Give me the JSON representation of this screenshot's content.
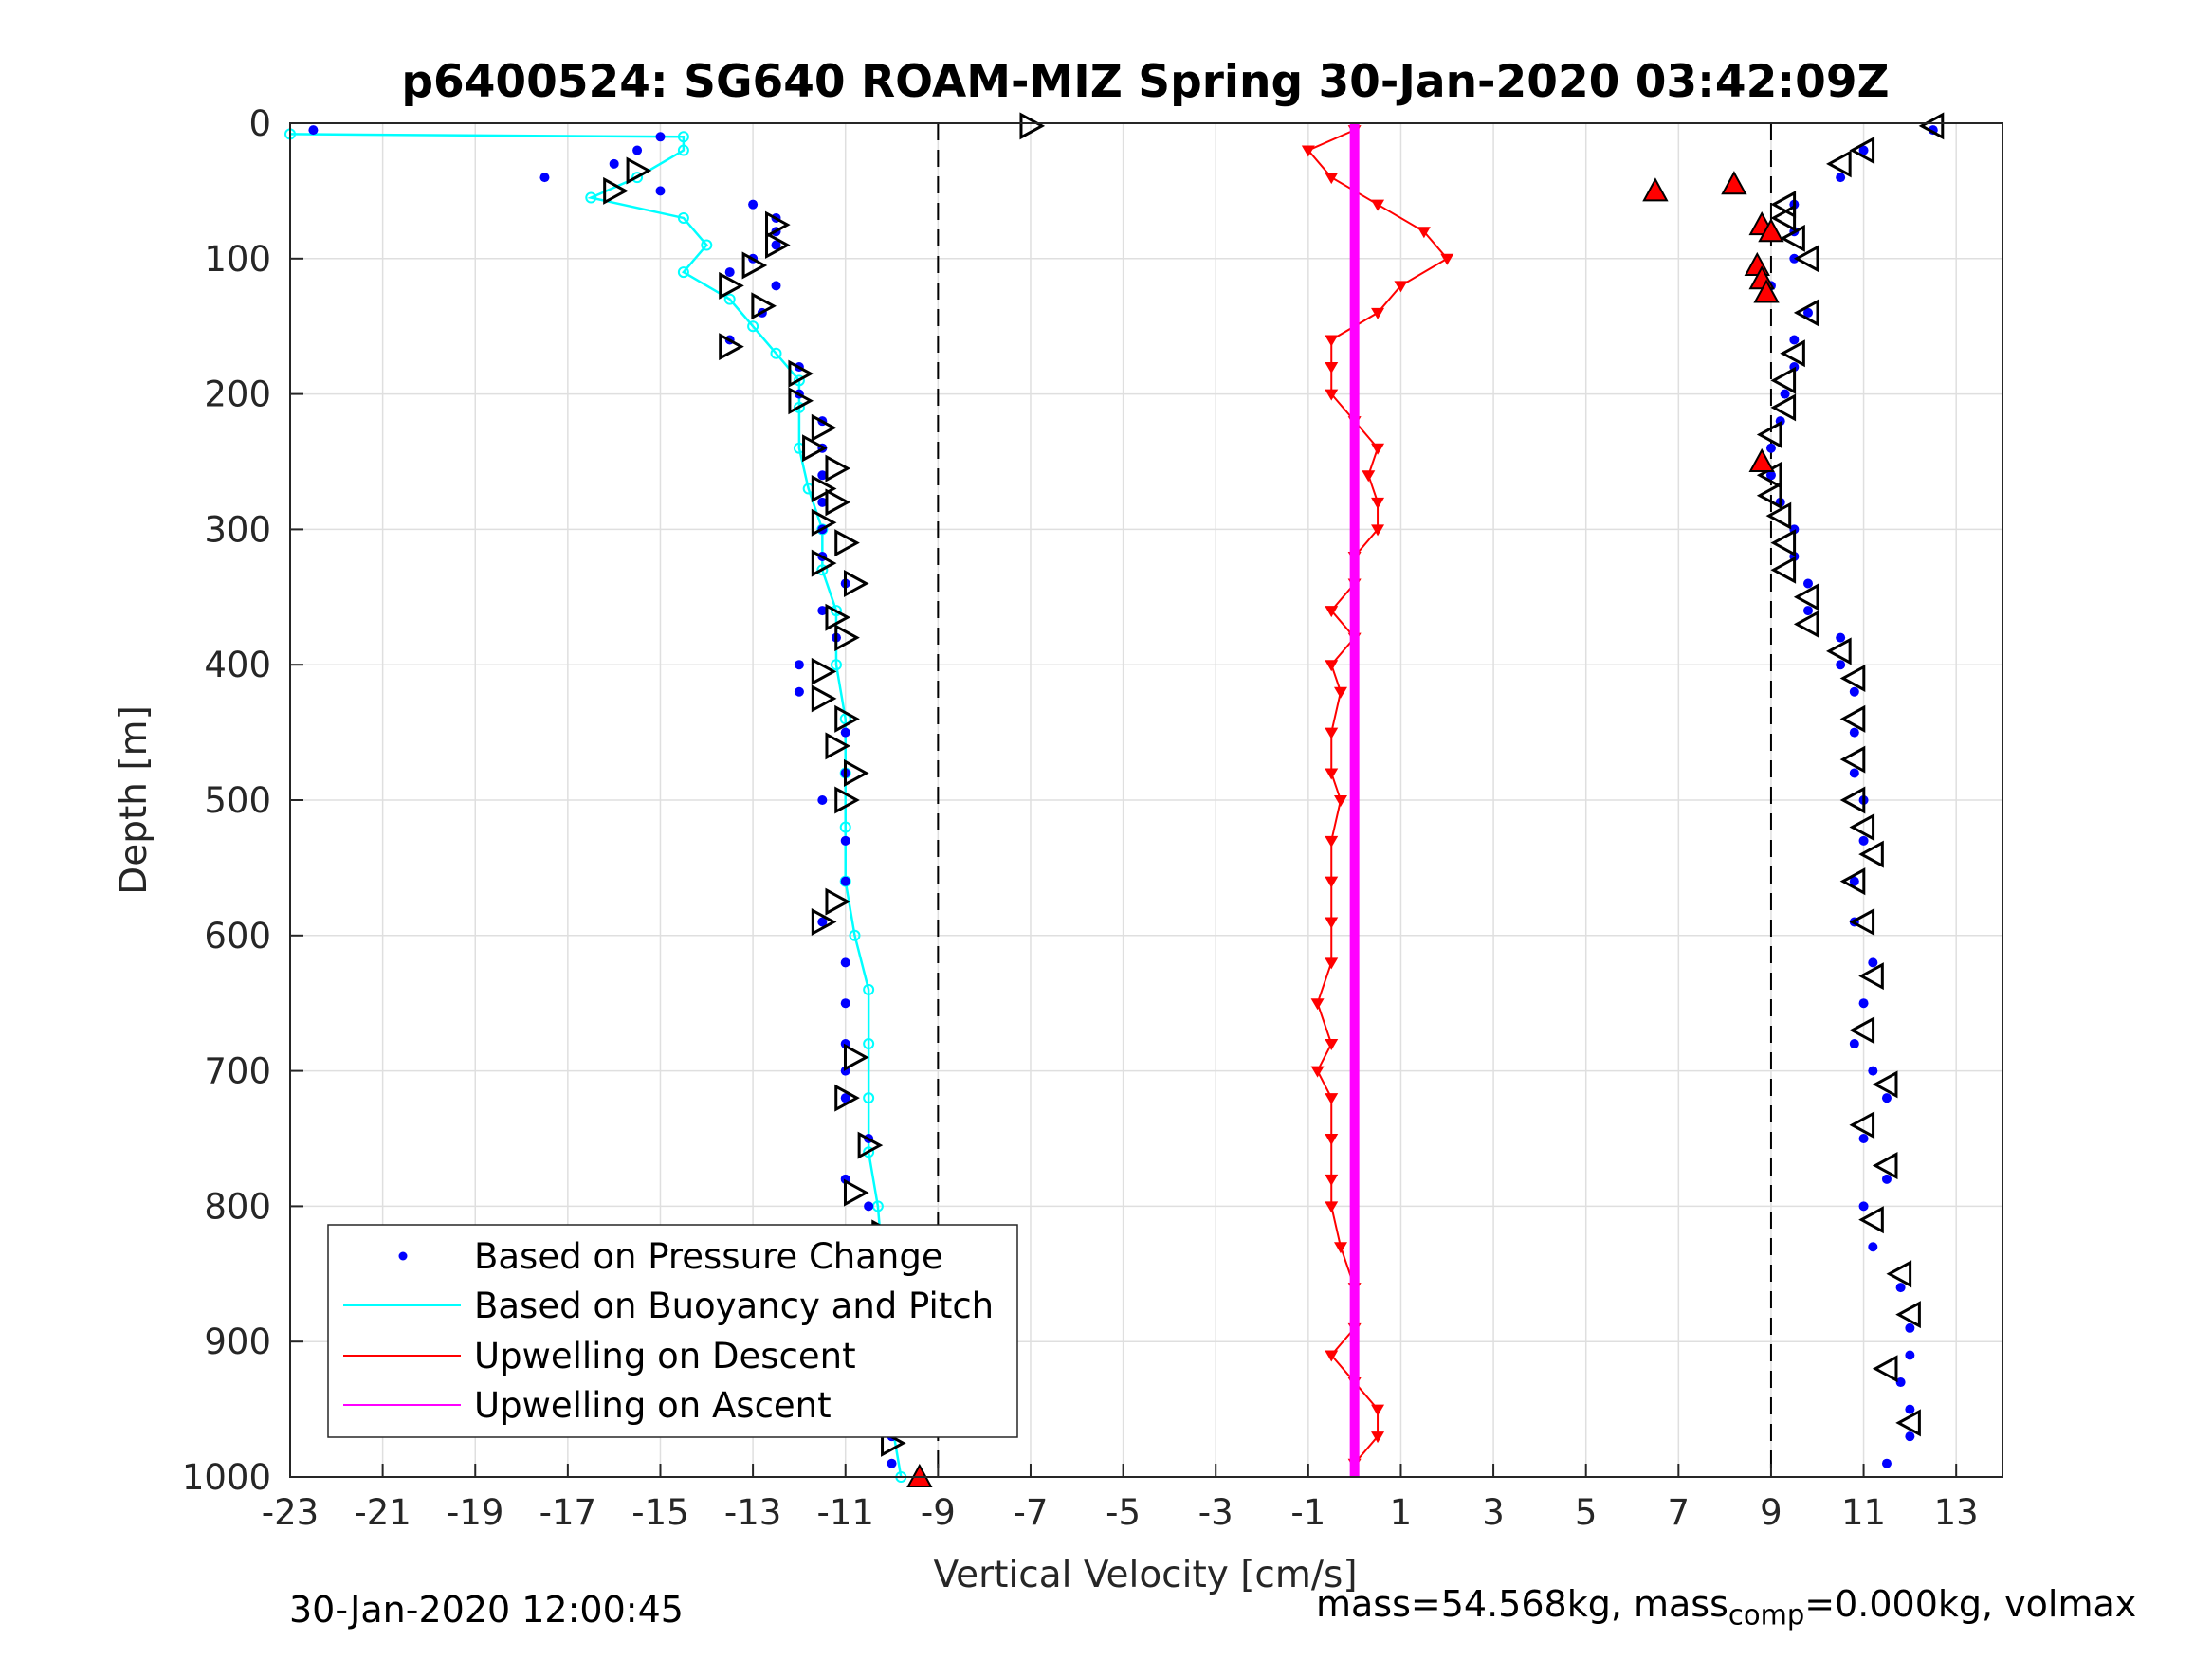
{
  "chart_data": {
    "type": "scatter",
    "title": "p6400524: SG640 ROAM-MIZ Spring 30-Jan-2020 03:42:09Z",
    "xlabel": "Vertical Velocity [cm/s]",
    "ylabel": "Depth [m]",
    "xlim": [
      -23,
      14
    ],
    "ylim": [
      0,
      1000
    ],
    "y_reversed": true,
    "grid": true,
    "x_ticks": [
      -23,
      -21,
      -19,
      -17,
      -15,
      -13,
      -11,
      -9,
      -7,
      -5,
      -3,
      -1,
      1,
      3,
      5,
      7,
      9,
      11,
      13
    ],
    "y_ticks": [
      0,
      100,
      200,
      300,
      400,
      500,
      600,
      700,
      800,
      900,
      1000
    ],
    "reference_lines": [
      -9,
      9
    ],
    "legend_position": "bottom-left",
    "legend": [
      "Based on Pressure Change",
      "Based on Buoyancy and Pitch",
      "Upwelling on Descent",
      "Upwelling on Ascent"
    ],
    "colors": {
      "pressure": "#0000ff",
      "buoyancy": "#00ffff",
      "upwelling_descent": "#ff0000",
      "upwelling_ascent": "#ff00ff",
      "marker_edge": "#000000"
    },
    "series": [
      {
        "name": "Based on Pressure Change",
        "descent_depth": [
          5,
          10,
          20,
          30,
          40,
          50,
          60,
          70,
          80,
          90,
          100,
          110,
          120,
          140,
          160,
          180,
          200,
          220,
          240,
          260,
          280,
          300,
          320,
          340,
          360,
          380,
          400,
          420,
          450,
          480,
          500,
          530,
          560,
          590,
          620,
          650,
          680,
          700,
          720,
          750,
          780,
          800,
          830,
          860,
          890,
          910,
          930,
          950,
          970,
          990
        ],
        "descent_velocity": [
          -22.5,
          -15,
          -15.5,
          -16,
          -17.5,
          -15,
          -13,
          -12.5,
          -12.5,
          -12.5,
          -13,
          -13.5,
          -12.5,
          -12.8,
          -13.5,
          -12,
          -12,
          -11.5,
          -11.5,
          -11.5,
          -11.5,
          -11.5,
          -11.5,
          -11,
          -11.5,
          -11.2,
          -12,
          -12,
          -11,
          -11,
          -11.5,
          -11,
          -11,
          -11.5,
          -11,
          -11,
          -11,
          -11,
          -11,
          -10.5,
          -11,
          -10.5,
          -10.5,
          -10.5,
          -10.5,
          -10.2,
          -10,
          -10,
          -10,
          -10
        ],
        "ascent_depth": [
          5,
          20,
          40,
          60,
          80,
          100,
          120,
          140,
          160,
          180,
          200,
          220,
          240,
          260,
          280,
          300,
          320,
          340,
          360,
          380,
          400,
          420,
          450,
          480,
          500,
          530,
          560,
          590,
          620,
          650,
          680,
          700,
          720,
          750,
          780,
          800,
          830,
          860,
          890,
          910,
          930,
          950,
          970,
          990
        ],
        "ascent_velocity": [
          12.5,
          11,
          10.5,
          9.5,
          9.5,
          9.5,
          9,
          9.8,
          9.5,
          9.5,
          9.3,
          9.2,
          9,
          9,
          9.2,
          9.5,
          9.5,
          9.8,
          9.8,
          10.5,
          10.5,
          10.8,
          10.8,
          10.8,
          11,
          11,
          10.8,
          10.8,
          11.2,
          11,
          10.8,
          11.2,
          11.5,
          11,
          11.5,
          11,
          11.2,
          11.8,
          12,
          12,
          11.8,
          12,
          12,
          11.5
        ]
      },
      {
        "name": "Based on Buoyancy and Pitch",
        "depth": [
          8,
          10,
          20,
          40,
          55,
          70,
          90,
          110,
          130,
          150,
          170,
          190,
          210,
          240,
          270,
          300,
          330,
          360,
          400,
          440,
          480,
          520,
          560,
          600,
          640,
          680,
          720,
          760,
          800,
          840,
          880,
          920,
          960,
          1000
        ],
        "velocity": [
          -23,
          -14.5,
          -14.5,
          -15.5,
          -16.5,
          -14.5,
          -14,
          -14.5,
          -13.5,
          -13,
          -12.5,
          -12,
          -12,
          -12,
          -11.8,
          -11.5,
          -11.5,
          -11.2,
          -11.2,
          -11,
          -11,
          -11,
          -11,
          -10.8,
          -10.5,
          -10.5,
          -10.5,
          -10.5,
          -10.3,
          -10.2,
          -10.2,
          -10,
          -10,
          -9.8
        ]
      },
      {
        "name": "Upwelling on Descent",
        "depth": [
          5,
          20,
          40,
          60,
          80,
          100,
          120,
          140,
          160,
          180,
          200,
          220,
          240,
          260,
          280,
          300,
          320,
          340,
          360,
          380,
          400,
          420,
          450,
          480,
          500,
          530,
          560,
          590,
          620,
          650,
          680,
          700,
          720,
          750,
          780,
          800,
          830,
          860,
          890,
          910,
          930,
          950,
          970,
          990
        ],
        "velocity": [
          0,
          -1,
          -0.5,
          0.5,
          1.5,
          2,
          1,
          0.5,
          -0.5,
          -0.5,
          -0.5,
          0,
          0.5,
          0.3,
          0.5,
          0.5,
          0,
          0,
          -0.5,
          0,
          -0.5,
          -0.3,
          -0.5,
          -0.5,
          -0.3,
          -0.5,
          -0.5,
          -0.5,
          -0.5,
          -0.8,
          -0.5,
          -0.8,
          -0.5,
          -0.5,
          -0.5,
          -0.5,
          -0.3,
          0,
          0,
          -0.5,
          0,
          0.5,
          0.5,
          0
        ]
      },
      {
        "name": "Upwelling on Ascent",
        "depth": [
          0,
          1000
        ],
        "velocity": [
          0,
          0
        ]
      }
    ],
    "descent_triangles": {
      "depth": [
        2,
        35,
        50,
        75,
        90,
        105,
        120,
        135,
        165,
        185,
        205,
        225,
        240,
        255,
        270,
        280,
        295,
        310,
        325,
        340,
        365,
        380,
        405,
        425,
        440,
        460,
        480,
        500,
        575,
        590,
        690,
        720,
        755,
        790,
        820,
        850,
        870,
        915,
        945,
        975
      ],
      "velocity": [
        -7,
        -15.5,
        -16,
        -12.5,
        -12.5,
        -13,
        -13.5,
        -12.8,
        -13.5,
        -12,
        -12,
        -11.5,
        -11.7,
        -11.2,
        -11.5,
        -11.2,
        -11.5,
        -11,
        -11.5,
        -10.8,
        -11.2,
        -11,
        -11.5,
        -11.5,
        -11,
        -11.2,
        -10.8,
        -11,
        -11.2,
        -11.5,
        -10.8,
        -11,
        -10.5,
        -10.8,
        -10.2,
        -10.2,
        -10,
        -10.5,
        -9.8,
        -10
      ]
    },
    "ascent_triangles": {
      "depth": [
        2,
        20,
        30,
        60,
        70,
        85,
        100,
        140,
        170,
        190,
        210,
        230,
        260,
        275,
        290,
        310,
        330,
        350,
        370,
        390,
        410,
        440,
        470,
        500,
        520,
        540,
        560,
        590,
        630,
        670,
        710,
        740,
        770,
        810,
        850,
        880,
        920,
        960
      ],
      "velocity": [
        12.5,
        11,
        10.5,
        9.3,
        9.3,
        9.5,
        9.8,
        9.8,
        9.5,
        9.3,
        9.3,
        9,
        9,
        9,
        9.2,
        9.3,
        9.3,
        9.8,
        9.8,
        10.5,
        10.8,
        10.8,
        10.8,
        10.8,
        11,
        11.2,
        10.8,
        11,
        11.2,
        11,
        11.5,
        11,
        11.5,
        11.2,
        11.8,
        12,
        11.5,
        12
      ]
    },
    "red_triangles": {
      "depth": [
        50,
        45,
        75,
        80,
        105,
        115,
        125,
        250,
        1000
      ],
      "velocity": [
        6.5,
        8.2,
        8.8,
        9,
        8.7,
        8.8,
        8.9,
        8.8,
        -9.4
      ]
    }
  },
  "footer": {
    "timestamp": "30-Jan-2020 12:00:45",
    "mass_prefix": "mass=54.568kg, mass",
    "mass_sub": "comp",
    "mass_suffix": "=0.000kg, volmax"
  }
}
